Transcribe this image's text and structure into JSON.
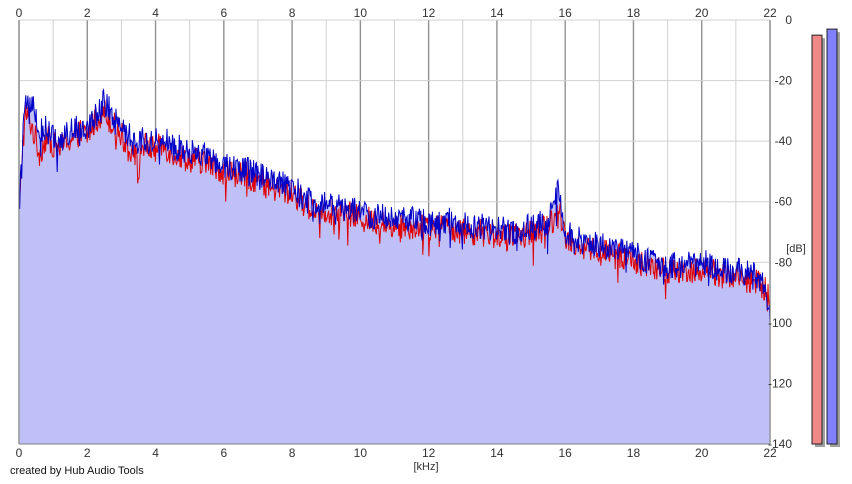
{
  "chart_data": {
    "type": "area",
    "title": "",
    "xlabel": "[kHz]",
    "ylabel": "[dB]",
    "xlim": [
      0,
      22
    ],
    "ylim": [
      -140,
      0
    ],
    "x_ticks": [
      0,
      2,
      4,
      6,
      8,
      10,
      12,
      14,
      16,
      18,
      20,
      22
    ],
    "y_ticks": [
      0,
      -20,
      -40,
      -60,
      -80,
      -100,
      -120,
      -140
    ],
    "grid": true,
    "colors": {
      "fill": "#c0c0f8",
      "red_series": "#e00000",
      "blue_series": "#0000c8",
      "grid_major": "#909090",
      "grid_minor": "#d0d0d0"
    },
    "series": [
      {
        "color": "red",
        "x": [
          0.02,
          0.1,
          0.2,
          0.3,
          0.4,
          0.5,
          0.6,
          0.8,
          1.0,
          1.2,
          1.4,
          1.6,
          1.8,
          2.0,
          2.2,
          2.4,
          2.5,
          2.6,
          2.8,
          3.0,
          3.2,
          3.4,
          3.5,
          3.6,
          3.8,
          4.0,
          4.2,
          4.5,
          5.0,
          5.5,
          6.0,
          6.5,
          7.0,
          7.5,
          8.0,
          8.5,
          9.0,
          9.5,
          10.0,
          10.5,
          11.0,
          11.5,
          12.0,
          12.5,
          13.0,
          13.5,
          14.0,
          14.5,
          15.0,
          15.4,
          15.7,
          15.8,
          15.9,
          16.0,
          16.5,
          17.0,
          17.5,
          18.0,
          18.5,
          19.0,
          19.5,
          20.0,
          20.5,
          21.0,
          21.5,
          21.8,
          22.0
        ],
        "y": [
          -62,
          -42,
          -31,
          -33,
          -36,
          -40,
          -44,
          -39,
          -41,
          -42,
          -40,
          -39,
          -37,
          -38,
          -34,
          -31,
          -30,
          -32,
          -35,
          -38,
          -42,
          -44,
          -52,
          -41,
          -42,
          -43,
          -41,
          -44,
          -46,
          -47,
          -50,
          -51,
          -53,
          -56,
          -57,
          -62,
          -63,
          -64,
          -65,
          -67,
          -68,
          -68,
          -69,
          -68,
          -70,
          -70,
          -71,
          -72,
          -70,
          -69,
          -65,
          -60,
          -66,
          -72,
          -75,
          -76,
          -78,
          -79,
          -82,
          -83,
          -83,
          -82,
          -84,
          -85,
          -86,
          -88,
          -92
        ]
      },
      {
        "color": "blue",
        "x": [
          0.02,
          0.1,
          0.2,
          0.3,
          0.4,
          0.5,
          0.6,
          0.8,
          1.0,
          1.2,
          1.4,
          1.6,
          1.8,
          2.0,
          2.2,
          2.4,
          2.5,
          2.6,
          2.8,
          3.0,
          3.2,
          3.4,
          3.5,
          3.6,
          3.8,
          4.0,
          4.2,
          4.5,
          5.0,
          5.5,
          6.0,
          6.5,
          7.0,
          7.5,
          8.0,
          8.5,
          9.0,
          9.5,
          10.0,
          10.5,
          11.0,
          11.5,
          12.0,
          12.5,
          13.0,
          13.5,
          14.0,
          14.5,
          15.0,
          15.4,
          15.7,
          15.8,
          15.9,
          16.0,
          16.5,
          17.0,
          17.5,
          18.0,
          18.5,
          19.0,
          19.5,
          20.0,
          20.5,
          21.0,
          21.5,
          21.8,
          22.0
        ],
        "y": [
          -58,
          -40,
          -29,
          -26,
          -28,
          -33,
          -37,
          -36,
          -39,
          -40,
          -38,
          -36,
          -35,
          -35,
          -32,
          -29,
          -27,
          -28,
          -32,
          -35,
          -38,
          -40,
          -40,
          -39,
          -40,
          -40,
          -39,
          -42,
          -43,
          -45,
          -48,
          -49,
          -51,
          -54,
          -55,
          -60,
          -61,
          -62,
          -63,
          -65,
          -65,
          -66,
          -67,
          -66,
          -68,
          -68,
          -69,
          -70,
          -68,
          -67,
          -62,
          -52,
          -63,
          -70,
          -73,
          -74,
          -76,
          -77,
          -80,
          -81,
          -81,
          -80,
          -82,
          -83,
          -84,
          -86,
          -100
        ]
      }
    ],
    "level_meters": [
      {
        "color": "red",
        "fill": "#f08888",
        "level_db": -5
      },
      {
        "color": "blue",
        "fill": "#8080ff",
        "level_db": -3
      }
    ]
  },
  "footer": {
    "credit": "created by Hub Audio Tools"
  }
}
